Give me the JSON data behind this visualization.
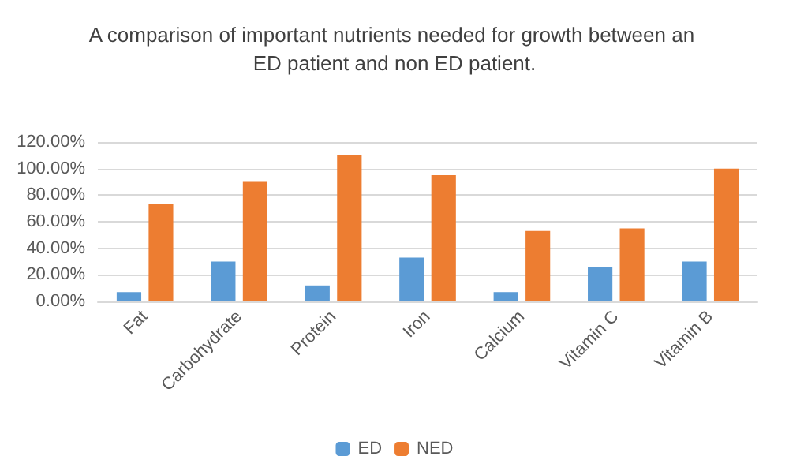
{
  "chart_data": {
    "type": "bar",
    "title": "A comparison of important nutrients needed for growth between an ED patient and non ED patient.",
    "categories": [
      "Fat",
      "Carbohydrate",
      "Protein",
      "Iron",
      "Calcium",
      "Vitamin C",
      "Vitamin B"
    ],
    "series": [
      {
        "name": "ED",
        "color": "#5b9bd5",
        "values": [
          7,
          30,
          12,
          33,
          7,
          26,
          30
        ]
      },
      {
        "name": "NED",
        "color": "#ed7d31",
        "values": [
          73,
          90,
          110,
          95,
          53,
          55,
          100
        ]
      }
    ],
    "ylim": [
      0,
      120
    ],
    "yticks": [
      {
        "value": 0,
        "label": "0.00%"
      },
      {
        "value": 20,
        "label": "20.00%"
      },
      {
        "value": 40,
        "label": "40.00%"
      },
      {
        "value": 60,
        "label": "60.00%"
      },
      {
        "value": 80,
        "label": "80.00%"
      },
      {
        "value": 100,
        "label": "100.00%"
      },
      {
        "value": 120,
        "label": "120.00%"
      }
    ],
    "grid": "y",
    "legend": "bottom"
  }
}
